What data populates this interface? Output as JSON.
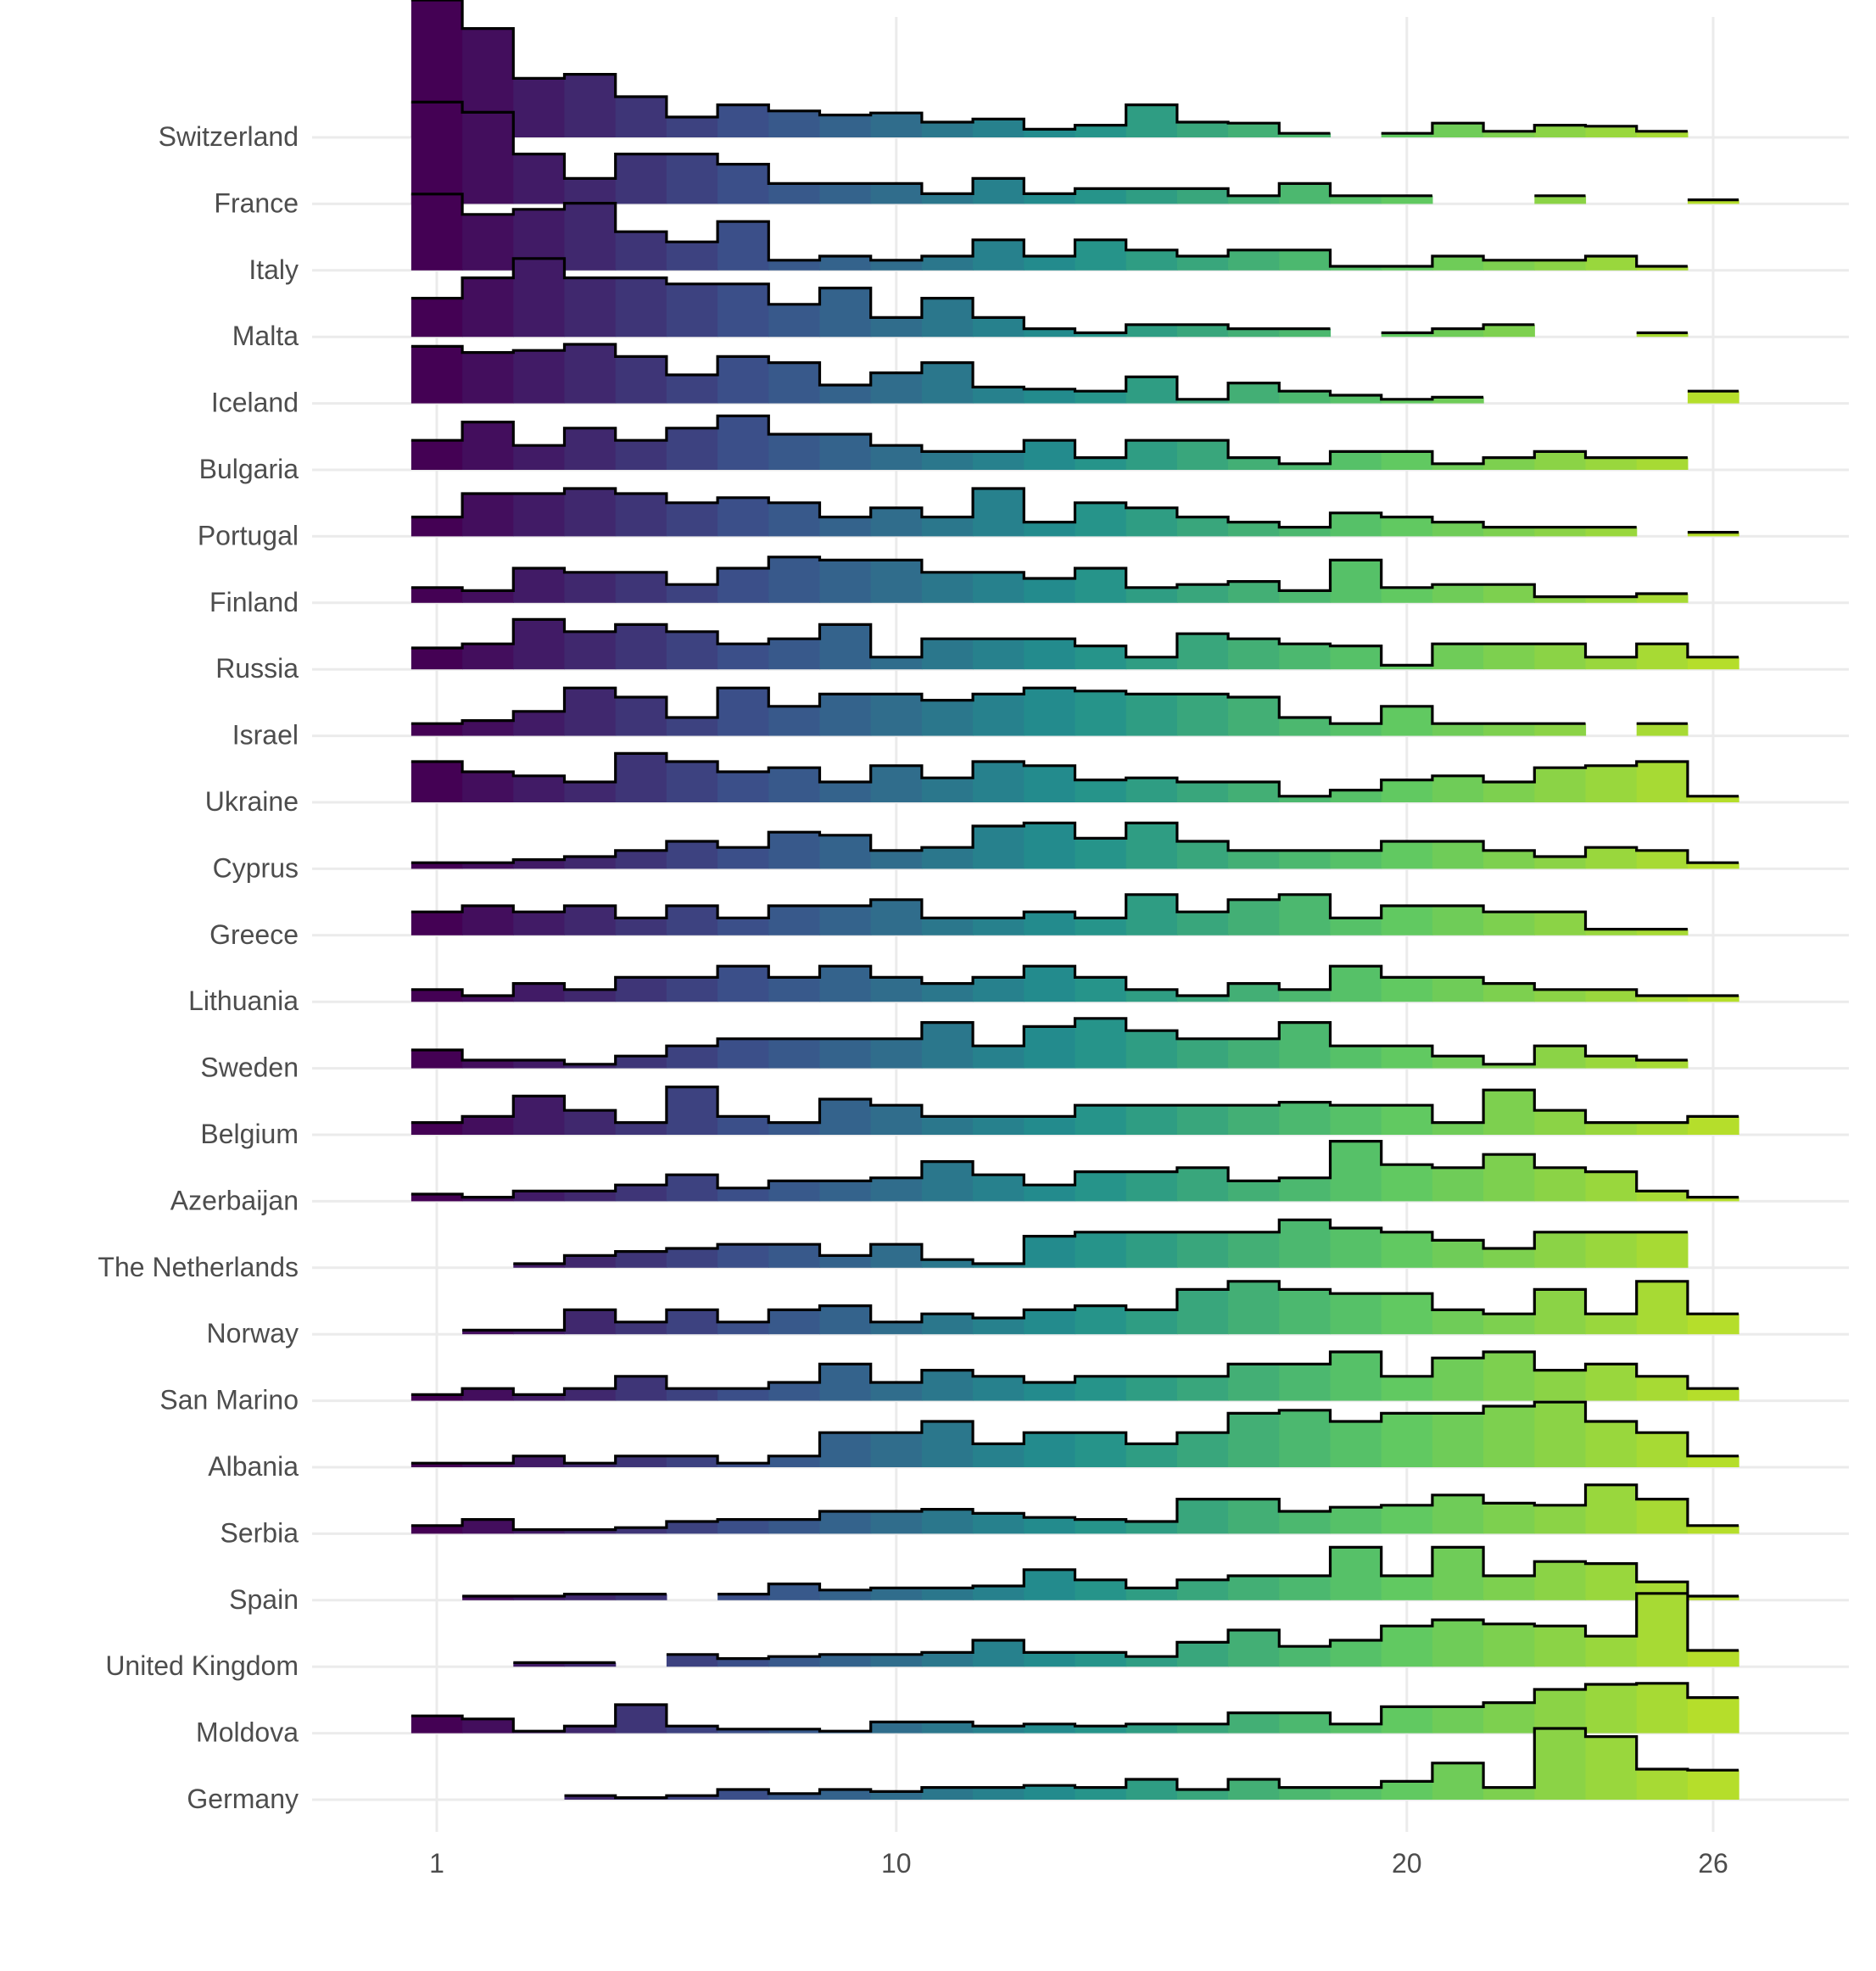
{
  "chart_data": {
    "type": "ridgeline-histogram",
    "x_ticks": [
      1,
      10,
      20,
      26
    ],
    "xlim": [
      0.5,
      27
    ],
    "bin_width": 1,
    "bins": [
      1,
      2,
      3,
      4,
      5,
      6,
      7,
      8,
      9,
      10,
      11,
      12,
      13,
      14,
      15,
      16,
      17,
      18,
      19,
      20,
      21,
      22,
      23,
      24,
      25,
      26
    ],
    "colormap": "viridis",
    "colors": [
      "#440154",
      "#3b528b",
      "#21908d",
      "#5dc863",
      "#b5de2b"
    ],
    "grid": true,
    "series": [
      {
        "name": "Switzerland",
        "values": [
          0.135,
          0.107,
          0.058,
          0.062,
          0.04,
          0.02,
          0.032,
          0.026,
          0.022,
          0.024,
          0.015,
          0.018,
          0.008,
          0.012,
          0.032,
          0.015,
          0.014,
          0.004,
          null,
          0.004,
          0.014,
          0.006,
          0.012,
          0.011,
          0.006,
          null
        ]
      },
      {
        "name": "France",
        "values": [
          0.1,
          0.09,
          0.049,
          0.025,
          0.049,
          0.049,
          0.039,
          0.02,
          0.02,
          0.02,
          0.01,
          0.025,
          0.01,
          0.015,
          0.015,
          0.015,
          0.008,
          0.02,
          0.008,
          0.008,
          null,
          null,
          0.008,
          null,
          null,
          0.004
        ]
      },
      {
        "name": "Italy",
        "values": [
          0.075,
          0.055,
          0.06,
          0.066,
          0.038,
          0.028,
          0.048,
          0.01,
          0.014,
          0.01,
          0.014,
          0.03,
          0.014,
          0.03,
          0.02,
          0.014,
          0.02,
          0.02,
          0.004,
          0.004,
          0.014,
          0.01,
          0.01,
          0.014,
          0.004,
          null
        ]
      },
      {
        "name": "Malta",
        "values": [
          0.038,
          0.058,
          0.077,
          0.058,
          0.058,
          0.052,
          0.052,
          0.032,
          0.048,
          0.019,
          0.038,
          0.019,
          0.008,
          0.004,
          0.012,
          0.012,
          0.008,
          0.008,
          null,
          0.004,
          0.008,
          0.012,
          null,
          null,
          0.004,
          null
        ]
      },
      {
        "name": "Iceland",
        "values": [
          0.056,
          0.05,
          0.052,
          0.058,
          0.046,
          0.028,
          0.046,
          0.04,
          0.018,
          0.03,
          0.04,
          0.016,
          0.014,
          0.012,
          0.026,
          0.004,
          0.02,
          0.012,
          0.008,
          0.004,
          0.006,
          null,
          null,
          null,
          null,
          0.012
        ]
      },
      {
        "name": "Bulgaria",
        "values": [
          0.029,
          0.047,
          0.024,
          0.041,
          0.029,
          0.041,
          0.053,
          0.035,
          0.035,
          0.024,
          0.018,
          0.018,
          0.029,
          0.012,
          0.029,
          0.029,
          0.012,
          0.006,
          0.018,
          0.018,
          0.006,
          0.012,
          0.018,
          0.012,
          0.012,
          null
        ]
      },
      {
        "name": "Portugal",
        "values": [
          0.019,
          0.042,
          0.042,
          0.047,
          0.042,
          0.033,
          0.038,
          0.033,
          0.019,
          0.028,
          0.019,
          0.047,
          0.014,
          0.033,
          0.028,
          0.019,
          0.014,
          0.009,
          0.023,
          0.019,
          0.014,
          0.009,
          0.009,
          0.009,
          null,
          0.004
        ]
      },
      {
        "name": "Finland",
        "values": [
          0.015,
          0.012,
          0.034,
          0.03,
          0.03,
          0.018,
          0.034,
          0.045,
          0.042,
          0.042,
          0.03,
          0.03,
          0.024,
          0.034,
          0.015,
          0.018,
          0.021,
          0.012,
          0.042,
          0.015,
          0.018,
          0.018,
          0.006,
          0.006,
          0.009,
          null
        ]
      },
      {
        "name": "Russia",
        "values": [
          0.021,
          0.025,
          0.049,
          0.037,
          0.044,
          0.037,
          0.025,
          0.03,
          0.044,
          0.012,
          0.03,
          0.03,
          0.03,
          0.023,
          0.012,
          0.035,
          0.03,
          0.025,
          0.023,
          0.004,
          0.025,
          0.025,
          0.025,
          0.012,
          0.025,
          0.012
        ]
      },
      {
        "name": "Israel",
        "values": [
          0.012,
          0.015,
          0.024,
          0.047,
          0.038,
          0.018,
          0.047,
          0.029,
          0.041,
          0.041,
          0.035,
          0.041,
          0.047,
          0.044,
          0.041,
          0.041,
          0.038,
          0.018,
          0.012,
          0.029,
          0.012,
          0.012,
          0.012,
          null,
          0.012,
          null
        ]
      },
      {
        "name": "Ukraine",
        "values": [
          0.04,
          0.03,
          0.026,
          0.02,
          0.048,
          0.04,
          0.03,
          0.034,
          0.02,
          0.036,
          0.024,
          0.04,
          0.036,
          0.022,
          0.024,
          0.02,
          0.02,
          0.006,
          0.012,
          0.022,
          0.026,
          0.02,
          0.034,
          0.036,
          0.04,
          0.006
        ]
      },
      {
        "name": "Cyprus",
        "values": [
          0.006,
          0.006,
          0.009,
          0.012,
          0.018,
          0.027,
          0.021,
          0.036,
          0.033,
          0.018,
          0.021,
          0.042,
          0.045,
          0.03,
          0.045,
          0.027,
          0.018,
          0.018,
          0.018,
          0.027,
          0.027,
          0.018,
          0.012,
          0.021,
          0.018,
          0.006
        ]
      },
      {
        "name": "Greece",
        "values": [
          0.023,
          0.029,
          0.023,
          0.029,
          0.017,
          0.029,
          0.017,
          0.029,
          0.029,
          0.035,
          0.017,
          0.017,
          0.023,
          0.017,
          0.04,
          0.023,
          0.035,
          0.04,
          0.017,
          0.029,
          0.029,
          0.023,
          0.023,
          0.006,
          0.006,
          null
        ]
      },
      {
        "name": "Lithuania",
        "values": [
          0.012,
          0.006,
          0.018,
          0.012,
          0.024,
          0.024,
          0.035,
          0.024,
          0.035,
          0.024,
          0.018,
          0.024,
          0.035,
          0.024,
          0.012,
          0.006,
          0.018,
          0.012,
          0.035,
          0.024,
          0.024,
          0.018,
          0.012,
          0.012,
          0.006,
          0.006
        ]
      },
      {
        "name": "Sweden",
        "values": [
          0.018,
          0.008,
          0.008,
          0.004,
          0.012,
          0.022,
          0.029,
          0.029,
          0.029,
          0.029,
          0.045,
          0.022,
          0.041,
          0.049,
          0.037,
          0.029,
          0.029,
          0.045,
          0.022,
          0.022,
          0.012,
          0.004,
          0.022,
          0.012,
          0.008,
          null
        ]
      },
      {
        "name": "Belgium",
        "values": [
          0.012,
          0.018,
          0.038,
          0.024,
          0.012,
          0.047,
          0.018,
          0.012,
          0.035,
          0.029,
          0.018,
          0.018,
          0.018,
          0.029,
          0.029,
          0.029,
          0.029,
          0.032,
          0.029,
          0.029,
          0.012,
          0.044,
          0.024,
          0.012,
          0.012,
          0.018
        ]
      },
      {
        "name": "Azerbaijan",
        "values": [
          0.007,
          0.004,
          0.01,
          0.01,
          0.016,
          0.026,
          0.013,
          0.02,
          0.02,
          0.023,
          0.039,
          0.026,
          0.016,
          0.029,
          0.029,
          0.033,
          0.02,
          0.023,
          0.059,
          0.036,
          0.033,
          0.046,
          0.033,
          0.029,
          0.01,
          0.004
        ]
      },
      {
        "name": "The Netherlands",
        "values": [
          null,
          null,
          0.004,
          0.012,
          0.016,
          0.019,
          0.023,
          0.023,
          0.012,
          0.023,
          0.008,
          0.004,
          0.031,
          0.035,
          0.035,
          0.035,
          0.035,
          0.047,
          0.039,
          0.035,
          0.027,
          0.019,
          0.035,
          0.035,
          0.035,
          null
        ]
      },
      {
        "name": "Norway",
        "values": [
          null,
          0.004,
          0.004,
          0.024,
          0.012,
          0.024,
          0.012,
          0.024,
          0.028,
          0.012,
          0.02,
          0.016,
          0.024,
          0.028,
          0.024,
          0.044,
          0.052,
          0.044,
          0.04,
          0.04,
          0.024,
          0.02,
          0.044,
          0.02,
          0.052,
          0.02
        ]
      },
      {
        "name": "San Marino",
        "values": [
          0.006,
          0.012,
          0.006,
          0.012,
          0.024,
          0.012,
          0.012,
          0.018,
          0.036,
          0.018,
          0.03,
          0.024,
          0.018,
          0.024,
          0.024,
          0.024,
          0.036,
          0.036,
          0.048,
          0.024,
          0.042,
          0.048,
          0.03,
          0.036,
          0.024,
          0.012
        ]
      },
      {
        "name": "Albania",
        "values": [
          0.004,
          0.004,
          0.011,
          0.004,
          0.011,
          0.011,
          0.004,
          0.011,
          0.034,
          0.034,
          0.045,
          0.023,
          0.034,
          0.034,
          0.023,
          0.034,
          0.053,
          0.056,
          0.045,
          0.053,
          0.053,
          0.06,
          0.064,
          0.045,
          0.034,
          0.011
        ]
      },
      {
        "name": "Serbia",
        "values": [
          0.008,
          0.014,
          0.004,
          0.004,
          0.006,
          0.012,
          0.014,
          0.014,
          0.022,
          0.022,
          0.024,
          0.02,
          0.016,
          0.014,
          0.012,
          0.034,
          0.034,
          0.022,
          0.026,
          0.028,
          0.038,
          0.03,
          0.028,
          0.048,
          0.034,
          0.008
        ]
      },
      {
        "name": "Spain",
        "values": [
          null,
          0.004,
          0.004,
          0.006,
          0.006,
          null,
          0.006,
          0.016,
          0.01,
          0.012,
          0.012,
          0.014,
          0.03,
          0.02,
          0.012,
          0.02,
          0.024,
          0.024,
          0.052,
          0.024,
          0.052,
          0.024,
          0.038,
          0.036,
          0.018,
          0.004
        ]
      },
      {
        "name": "United Kingdom",
        "values": [
          null,
          null,
          0.004,
          0.004,
          null,
          0.012,
          0.008,
          0.01,
          0.012,
          0.012,
          0.014,
          0.026,
          0.014,
          0.014,
          0.01,
          0.024,
          0.036,
          0.02,
          0.026,
          0.04,
          0.046,
          0.042,
          0.04,
          0.03,
          0.072,
          0.016
        ]
      },
      {
        "name": "Moldova",
        "values": [
          0.017,
          0.014,
          0.002,
          0.007,
          0.028,
          0.007,
          0.004,
          0.004,
          0.002,
          0.011,
          0.011,
          0.007,
          0.009,
          0.007,
          0.009,
          0.009,
          0.02,
          0.02,
          0.009,
          0.026,
          0.026,
          0.03,
          0.043,
          0.048,
          0.049,
          0.035
        ]
      },
      {
        "name": "Germany",
        "values": [
          null,
          null,
          null,
          0.004,
          0.002,
          0.004,
          0.01,
          0.006,
          0.01,
          0.008,
          0.012,
          0.012,
          0.014,
          0.012,
          0.02,
          0.01,
          0.02,
          0.012,
          0.012,
          0.018,
          0.036,
          0.012,
          0.07,
          0.062,
          0.03,
          0.029
        ]
      }
    ]
  }
}
